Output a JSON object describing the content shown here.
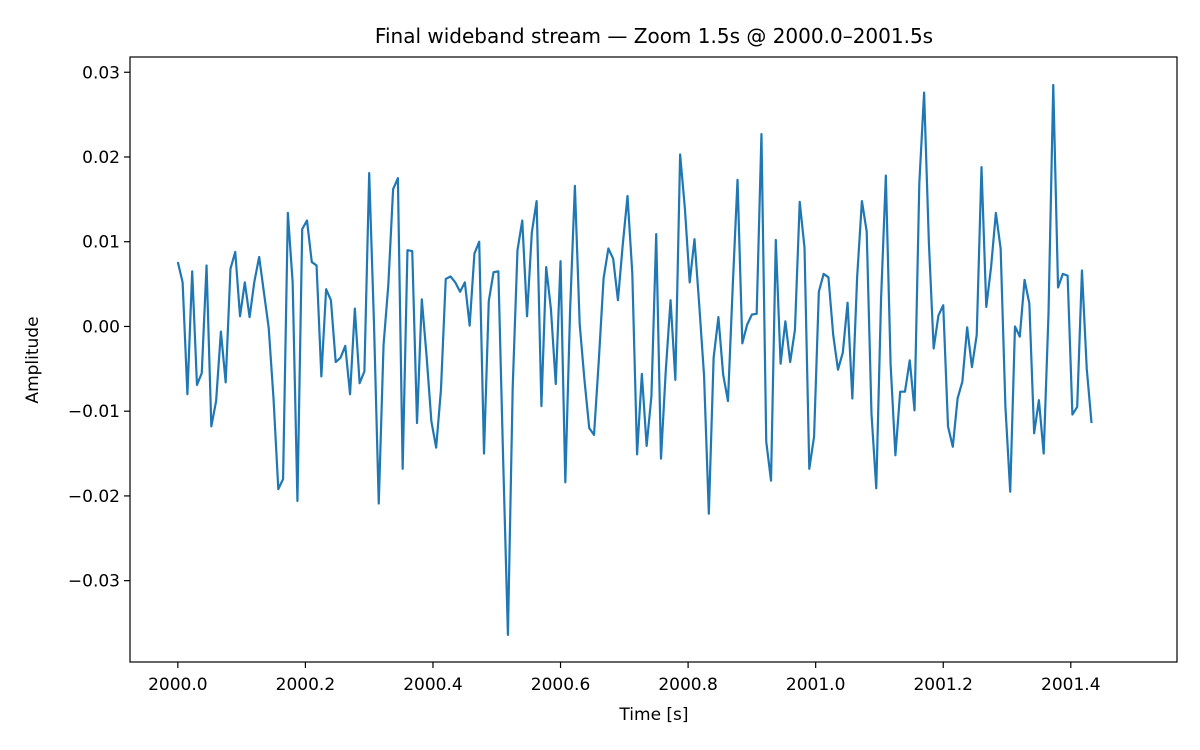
{
  "chart_data": {
    "type": "line",
    "title": "Final wideband stream — Zoom 1.5s @ 2000.0–2001.5s",
    "xlabel": "Time [s]",
    "ylabel": "Amplitude",
    "xlim": [
      1999.925,
      2001.5665
    ],
    "ylim": [
      -0.0396,
      0.0318
    ],
    "grid": false,
    "legend": "none",
    "color": "#1f77b4",
    "x_ticks": [
      2000.0,
      2000.2,
      2000.4,
      2000.6,
      2000.8,
      2001.0,
      2001.2,
      2001.4
    ],
    "x_tick_labels": [
      "2000.0",
      "2000.2",
      "2000.4",
      "2000.6",
      "2000.8",
      "2001.0",
      "2001.2",
      "2001.4"
    ],
    "y_ticks": [
      0.03,
      0.02,
      0.01,
      0.0,
      -0.01,
      -0.02,
      -0.03
    ],
    "y_tick_labels": [
      "0.03",
      "0.02",
      "0.01",
      "0.00",
      "−0.01",
      "−0.02",
      "−0.03"
    ],
    "series": [
      {
        "x0": 2000.0,
        "dx": 0.0075,
        "values": [
          0.0076,
          0.0052,
          -0.008,
          0.0065,
          -0.0069,
          -0.0055,
          0.0072,
          -0.0118,
          -0.0088,
          -0.0006,
          -0.0066,
          0.0068,
          0.0088,
          0.0012,
          0.0052,
          0.0011,
          0.0053,
          0.0082,
          0.004,
          -0.0002,
          -0.0085,
          -0.0192,
          -0.018,
          0.0134,
          0.0052,
          -0.0206,
          0.0115,
          0.0125,
          0.0076,
          0.0072,
          -0.0059,
          0.0044,
          0.0031,
          -0.0042,
          -0.0037,
          -0.0023,
          -0.008,
          0.0021,
          -0.0067,
          -0.0053,
          0.0181,
          0.0004,
          -0.0209,
          -0.0022,
          0.0049,
          0.0162,
          0.0175,
          -0.0168,
          0.009,
          0.0089,
          -0.0114,
          0.0032,
          -0.0035,
          -0.0112,
          -0.0143,
          -0.0075,
          0.0056,
          0.0059,
          0.0052,
          0.0041,
          0.0052,
          0.0001,
          0.0086,
          0.01,
          -0.015,
          0.003,
          0.0064,
          0.0065,
          -0.0156,
          -0.0364,
          -0.0072,
          0.009,
          0.0125,
          0.0012,
          0.0111,
          0.0148,
          -0.0094,
          0.007,
          0.002,
          -0.0068,
          0.0077,
          -0.0184,
          0.0019,
          0.0166,
          0.0003,
          -0.0063,
          -0.012,
          -0.0128,
          -0.004,
          0.0057,
          0.0092,
          0.008,
          0.0031,
          0.0096,
          0.0154,
          0.0063,
          -0.0151,
          -0.0056,
          -0.0141,
          -0.0082,
          0.0109,
          -0.0156,
          -0.0052,
          0.0031,
          -0.0063,
          0.0203,
          0.0139,
          0.0052,
          0.0103,
          0.0025,
          -0.0058,
          -0.0221,
          -0.0037,
          0.0011,
          -0.0057,
          -0.0088,
          0.0048,
          0.0173,
          -0.002,
          0.0002,
          0.0014,
          0.0015,
          0.0227,
          -0.0136,
          -0.0182,
          0.0102,
          -0.0044,
          0.0006,
          -0.0042,
          -0.0004,
          0.0147,
          0.0093,
          -0.0168,
          -0.013,
          0.0041,
          0.0062,
          0.0058,
          -0.001,
          -0.0051,
          -0.0031,
          0.0028,
          -0.0085,
          0.0058,
          0.0148,
          0.0112,
          -0.0103,
          -0.0191,
          0.0032,
          0.0178,
          -0.0045,
          -0.0152,
          -0.0077,
          -0.0077,
          -0.004,
          -0.0099,
          0.0169,
          0.0276,
          0.0099,
          -0.0026,
          0.0013,
          0.0025,
          -0.0118,
          -0.0142,
          -0.0085,
          -0.0065,
          -0.0001,
          -0.0048,
          -0.001,
          0.0188,
          0.0023,
          0.007,
          0.0134,
          0.0092,
          -0.0095,
          -0.0195,
          0.0,
          -0.0012,
          0.0055,
          0.0027,
          -0.0126,
          -0.0087,
          -0.015,
          0.0014,
          0.0285,
          0.0046,
          0.0062,
          0.006,
          -0.0104,
          -0.0095,
          0.0066,
          -0.005,
          -0.0114
        ]
      }
    ]
  }
}
